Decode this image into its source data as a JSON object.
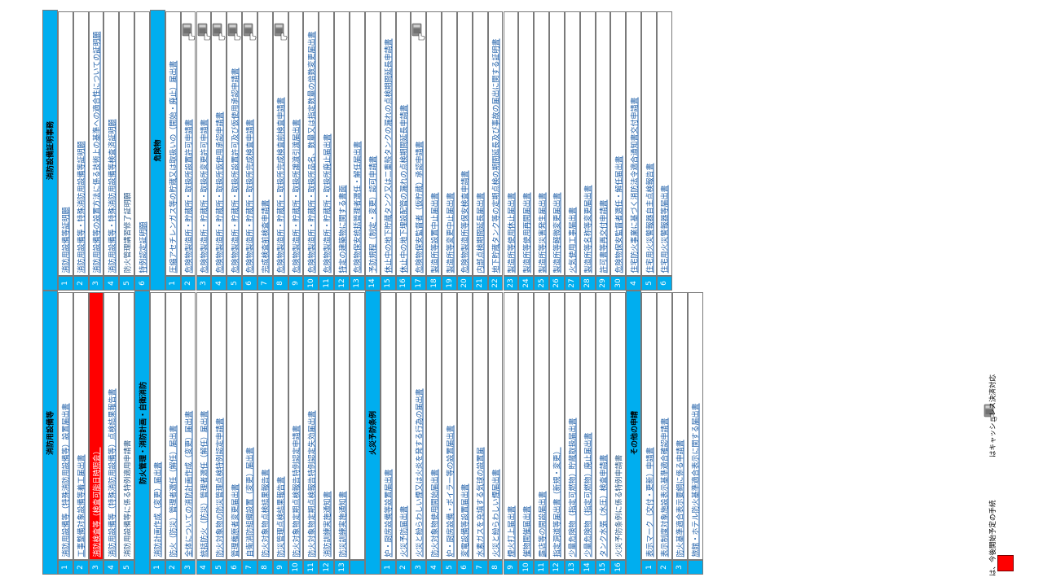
{
  "sections": [
    {
      "title": "消防用設備等",
      "items": [
        {
          "n": "1",
          "label": "消防用設備等（特殊消防用設備等）設置届出書",
          "link": true
        },
        {
          "n": "2",
          "label": "工事整備対象設備等着工届出書",
          "link": true
        },
        {
          "n": "3",
          "label": "消防検査等（検査可能日時照会）",
          "link": true,
          "highlight": true
        },
        {
          "n": "4",
          "label": "消防用設備等（特殊消防用設備等）点検結果報告書",
          "link": true
        },
        {
          "n": "5",
          "label": "消防用設備等に係る特例適用申請書",
          "link": false
        }
      ]
    },
    {
      "title": "防火管理・消防計画・自衛消防",
      "items": [
        {
          "n": "1",
          "label": "消防計画作成（変更）届出書",
          "link": true
        },
        {
          "n": "2",
          "label": "防火（防災）管理者選任（解任）届出書",
          "link": true
        },
        {
          "n": "3",
          "label": "全体についての消防計画作成（変更）届出書",
          "link": true
        },
        {
          "n": "4",
          "label": "統括防火（防災）管理者選任（解任）届出書",
          "link": true
        },
        {
          "n": "5",
          "label": "防火対象物の防災管理点検特例認定申請書",
          "link": true
        },
        {
          "n": "6",
          "label": "管理権原者変更届出書",
          "link": true
        },
        {
          "n": "7",
          "label": "自衛消防組織設置（変更）届出書",
          "link": true
        },
        {
          "n": "8",
          "label": "防火対象物点検結果報告書",
          "link": true
        },
        {
          "n": "9",
          "label": "防災管理点検結果報告書",
          "link": true
        },
        {
          "n": "10",
          "label": "防火対象物定期点検報告特例認定申請書",
          "link": true
        },
        {
          "n": "11",
          "label": "防火対象物定期点検報告特例認定失効届出書",
          "link": true
        },
        {
          "n": "12",
          "label": "消防訓練実施通知書",
          "link": true
        },
        {
          "n": "13",
          "label": "防災訓練実施通知書",
          "link": true
        },
        {
          "n": "",
          "label": "",
          "link": false
        }
      ]
    },
    {
      "title": "火災予防条例",
      "items": [
        {
          "n": "1",
          "label": "炉・厨房設備等設置届出書",
          "link": true
        },
        {
          "n": "2",
          "label": "火災予防届出書",
          "link": true
        },
        {
          "n": "3",
          "label": "火災と紛らわしい煙又は火炎を発する行為の届出書",
          "link": true
        },
        {
          "n": "4",
          "label": "防火対象物使用開始届出書",
          "link": true
        },
        {
          "n": "5",
          "label": "炉・厨房設備・ボイラー等の設置届出書",
          "link": true
        },
        {
          "n": "6",
          "label": "変電設備等設置届出書",
          "link": true
        },
        {
          "n": "7",
          "label": "水素ガスを充填する気球の設置届",
          "link": true
        },
        {
          "n": "8",
          "label": "火災と紛らわしい煙届出書",
          "link": true
        },
        {
          "n": "9",
          "label": "煙火打上届出書",
          "link": true
        },
        {
          "n": "10",
          "label": "催物開催届出書",
          "link": true
        },
        {
          "n": "11",
          "label": "露店等の開設届出書",
          "link": true
        },
        {
          "n": "12",
          "label": "指定洞道等届出書（新規・変更）",
          "link": true
        },
        {
          "n": "13",
          "label": "少量危険物（指定可燃物）貯蔵取扱届出書",
          "link": true
        },
        {
          "n": "14",
          "label": "少量危険物（指定可燃物）廃止届出書",
          "link": true
        },
        {
          "n": "15",
          "label": "タンク水張（水圧）検査申請書",
          "link": true
        },
        {
          "n": "16",
          "label": "火災予防条例に係る特例申請書",
          "link": false
        }
      ]
    },
    {
      "title": "その他の申請",
      "items": [
        {
          "n": "1",
          "label": "表示マーク（交付・更新）申請書",
          "link": true
        },
        {
          "n": "2",
          "label": "表示制度対象施設表示基準適合確認申請書",
          "link": true
        },
        {
          "n": "3",
          "label": "防火基準適合表示要綱に係る申請書",
          "link": true
        },
        {
          "n": "",
          "label": "旅館・ホテル防火基準適合表示に関する届出書",
          "link": true
        }
      ]
    },
    {
      "title": "消防設備証明事務",
      "items": [
        {
          "n": "1",
          "label": "消防用設備等証明願",
          "link": true
        },
        {
          "n": "2",
          "label": "消防用設備等・特殊消防用設備等証明願",
          "link": true
        },
        {
          "n": "3",
          "label": "消防用設備等の設置方法に係る技術上の基準への適合性についての証明願",
          "link": true
        },
        {
          "n": "4",
          "label": "消防用設備等・特殊消防用設備等検査済証明願",
          "link": true
        },
        {
          "n": "5",
          "label": "防火管理講習修了証明願",
          "link": false
        },
        {
          "n": "6",
          "label": "特例認定証明願",
          "link": true
        }
      ]
    },
    {
      "title": "危険物",
      "items": [
        {
          "n": "1",
          "label": "圧縮アセチレンガス等の貯蔵又は取扱いの（開始・廃止）届出書",
          "link": true
        },
        {
          "n": "2",
          "label": "危険物製造所・貯蔵所・取扱所設置許可申請書",
          "link": true,
          "card": true
        },
        {
          "n": "3",
          "label": "危険物製造所・貯蔵所・取扱所変更許可申請書",
          "link": true,
          "card": true
        },
        {
          "n": "4",
          "label": "危険物製造所・貯蔵所・取扱所仮使用承認申請書",
          "link": true,
          "card": true
        },
        {
          "n": "5",
          "label": "危険物製造所・貯蔵所・取扱所設置許可及び仮使用承認申請書",
          "link": true,
          "card": true
        },
        {
          "n": "6",
          "label": "危険物製造所・貯蔵所・取扱所完成検査申請書",
          "link": true,
          "card": true
        },
        {
          "n": "7",
          "label": "完成検査前検査申請書",
          "link": true
        },
        {
          "n": "8",
          "label": "危険物製造所・貯蔵所・取扱所完成検査前検査申請書",
          "link": true,
          "card": true
        },
        {
          "n": "9",
          "label": "危険物製造所・貯蔵所・取扱所譲渡引渡届出書",
          "link": true
        },
        {
          "n": "10",
          "label": "危険物製造所・貯蔵所・取扱所品名、数量又は指定数量の倍数変更届出書",
          "link": true
        },
        {
          "n": "11",
          "label": "危険物製造所・貯蔵所・取扱所廃止届出書",
          "link": true
        },
        {
          "n": "12",
          "label": "特定の建築物に関する書面",
          "link": true
        },
        {
          "n": "13",
          "label": "危険物保安統括管理者選任・解任届出書",
          "link": true
        },
        {
          "n": "14",
          "label": "予防規程（制定・変更）認可申請書",
          "link": true
        },
        {
          "n": "15",
          "label": "休止中の地下貯蔵タンク又は二重殻タンクの漏れの点検期間延長申請書",
          "link": true
        },
        {
          "n": "16",
          "label": "休止中の地下埋設配管の漏れの点検期間延長申請書",
          "link": true
        },
        {
          "n": "17",
          "label": "危険物保安監督者（仮貯蔵）承認申請書",
          "link": true,
          "card": true
        },
        {
          "n": "18",
          "label": "製造所等設置中止届出書",
          "link": true
        },
        {
          "n": "19",
          "label": "製造所等変更中止届出書",
          "link": true
        },
        {
          "n": "20",
          "label": "危険物製造所等保安検査申請書",
          "link": true
        },
        {
          "n": "21",
          "label": "内部点検期間延長届出書",
          "link": true
        },
        {
          "n": "22",
          "label": "地下貯蔵タンク等の定期点検の期間延長及び事故の届出に関する証明書",
          "link": true
        },
        {
          "n": "23",
          "label": "製造所等使用休止届出書",
          "link": true
        },
        {
          "n": "24",
          "label": "製造所等使用再開届出書",
          "link": true
        },
        {
          "n": "25",
          "label": "製造所等災害発生届出書",
          "link": true
        },
        {
          "n": "26",
          "label": "製造所等軽微変更届出書",
          "link": true
        },
        {
          "n": "27",
          "label": "火気使用工事届出書",
          "link": true
        },
        {
          "n": "28",
          "label": "製造所等名称等変更届出書",
          "link": true
        },
        {
          "n": "29",
          "label": "許可書等再交付申請書",
          "link": true
        },
        {
          "n": "30",
          "label": "危険物保安監督者選任・解任届出書",
          "link": true
        }
      ]
    },
    {
      "title": "",
      "items": [
        {
          "n": "4",
          "label": "住宅防火事業に基づく消防法令適合通知書交付申請書",
          "link": true
        },
        {
          "n": "5",
          "label": "住宅用火災警報器自主点検報告書",
          "link": true
        },
        {
          "n": "6",
          "label": "住宅用火災警報器等届出書",
          "link": true
        }
      ]
    }
  ],
  "legend": {
    "red_text": "は、今後開始予定の手続",
    "card_text": "はキャッシュレス決済対応"
  },
  "colors": {
    "header": "#00aeef",
    "highlight": "#ff0000",
    "link": "#1f5fa8"
  },
  "icons": {
    "card": "card-terminal-icon"
  }
}
